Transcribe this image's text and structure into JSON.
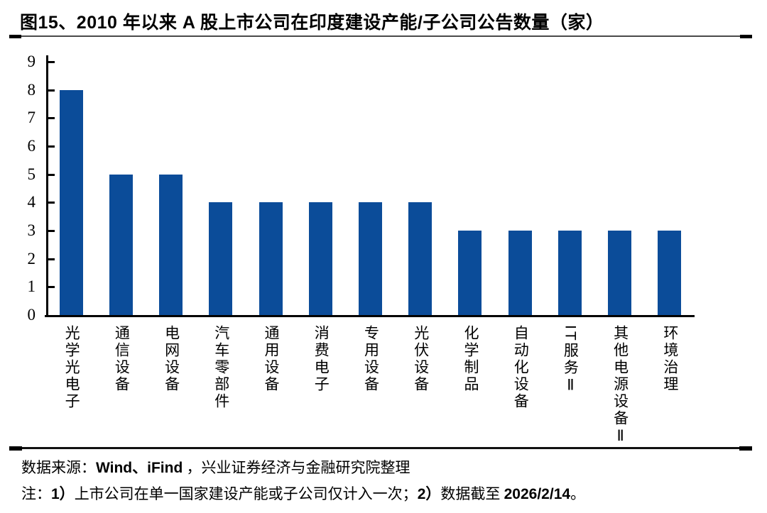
{
  "chart_data": {
    "type": "bar",
    "title": "图15、2010 年以来 A 股上市公司在印度建设产能/子公司公告数量（家）",
    "categories": [
      "光学光电子",
      "通信设备",
      "电网设备",
      "汽车零部件",
      "通用设备",
      "消费电子",
      "专用设备",
      "光伏设备",
      "化学制品",
      "自动化设备",
      "IT服务Ⅱ",
      "其他电源设备Ⅱ",
      "环境治理"
    ],
    "values": [
      8,
      5,
      5,
      4,
      4,
      4,
      4,
      4,
      3,
      3,
      3,
      3,
      3
    ],
    "xlabel": "",
    "ylabel": "",
    "ylim": [
      0,
      9
    ],
    "yticks": [
      0,
      1,
      2,
      3,
      4,
      5,
      6,
      7,
      8,
      9
    ],
    "bar_color": "#0B4C99",
    "grid": false,
    "legend_position": "none"
  },
  "footer": {
    "source_prefix": "数据来源：",
    "source_latin": "Wind、iFind",
    "source_suffix": " ，兴业证券经济与金融研究院整理",
    "note_prefix": "注：",
    "note1_num": "1）",
    "note1_text": "上市公司在单一国家建设产能或子公司仅计入一次；",
    "note2_num": "2）",
    "note2_text": "数据截至 ",
    "note_date": "2026/2/14",
    "note_period": "。"
  }
}
